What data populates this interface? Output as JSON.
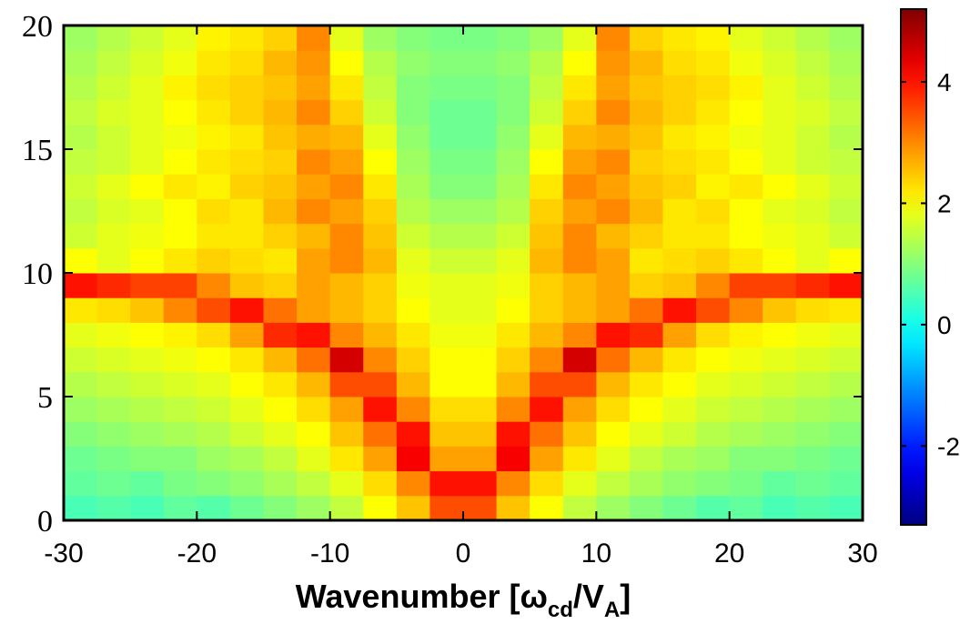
{
  "chart_data": {
    "type": "heatmap",
    "xlabel_parts": [
      "Wavenumber [ω",
      "cd",
      "/V",
      "A",
      "]"
    ],
    "x_bins": [
      -30,
      -27.5,
      -25,
      -22.5,
      -20,
      -17.5,
      -15,
      -12.5,
      -10,
      -7.5,
      -5,
      -2.5,
      0,
      2.5,
      5,
      7.5,
      10,
      12.5,
      15,
      17.5,
      20,
      22.5,
      25,
      27.5,
      30
    ],
    "y_bins": [
      0,
      1,
      2,
      3,
      4,
      5,
      6,
      7,
      8,
      9,
      10,
      11,
      12,
      13,
      14,
      15,
      16,
      17,
      18,
      19,
      20
    ],
    "z": [
      [
        0.5,
        0.6,
        0.5,
        0.7,
        0.6,
        0.8,
        1.0,
        1.2,
        1.5,
        2.0,
        2.5,
        3.5,
        3.5,
        2.5,
        2.0,
        1.5,
        1.2,
        1.0,
        0.8,
        0.6,
        0.7,
        0.5,
        0.6,
        0.5
      ],
      [
        0.7,
        0.8,
        0.7,
        0.9,
        1.0,
        1.1,
        1.3,
        1.5,
        1.8,
        2.3,
        3.0,
        4.0,
        4.0,
        3.0,
        2.3,
        1.8,
        1.5,
        1.3,
        1.1,
        1.0,
        0.9,
        0.7,
        0.8,
        0.7
      ],
      [
        0.8,
        0.9,
        1.0,
        1.0,
        1.2,
        1.3,
        1.5,
        1.8,
        2.2,
        2.8,
        4.2,
        2.8,
        2.8,
        4.2,
        2.8,
        2.2,
        1.8,
        1.5,
        1.3,
        1.2,
        1.0,
        1.0,
        0.9,
        0.8
      ],
      [
        1.0,
        1.1,
        1.2,
        1.3,
        1.4,
        1.6,
        1.8,
        2.0,
        2.5,
        3.2,
        4.0,
        2.5,
        2.5,
        4.0,
        3.2,
        2.5,
        2.0,
        1.8,
        1.6,
        1.4,
        1.3,
        1.2,
        1.1,
        1.0
      ],
      [
        1.2,
        1.3,
        1.4,
        1.5,
        1.6,
        1.8,
        2.0,
        2.3,
        2.8,
        4.0,
        3.0,
        2.3,
        2.3,
        3.0,
        4.0,
        2.8,
        2.3,
        2.0,
        1.8,
        1.6,
        1.5,
        1.4,
        1.3,
        1.2
      ],
      [
        1.4,
        1.5,
        1.6,
        1.7,
        1.8,
        2.0,
        2.2,
        2.6,
        3.5,
        3.5,
        2.6,
        2.0,
        2.0,
        2.6,
        3.5,
        3.5,
        2.6,
        2.2,
        2.0,
        1.8,
        1.7,
        1.6,
        1.5,
        1.4
      ],
      [
        1.6,
        1.7,
        1.8,
        1.9,
        2.0,
        2.2,
        2.6,
        3.2,
        4.5,
        3.0,
        2.4,
        2.0,
        2.0,
        2.4,
        3.0,
        4.5,
        3.2,
        2.6,
        2.2,
        2.0,
        1.9,
        1.8,
        1.7,
        1.6
      ],
      [
        1.8,
        1.9,
        2.0,
        2.1,
        2.3,
        2.8,
        3.8,
        4.0,
        3.0,
        2.6,
        2.2,
        1.9,
        1.9,
        2.2,
        2.6,
        3.0,
        4.0,
        3.8,
        2.8,
        2.3,
        2.1,
        2.0,
        1.9,
        1.8
      ],
      [
        2.2,
        2.3,
        2.5,
        3.0,
        3.5,
        4.0,
        3.2,
        2.8,
        2.6,
        2.4,
        2.0,
        1.8,
        1.8,
        2.0,
        2.4,
        2.6,
        2.8,
        3.2,
        4.0,
        3.5,
        3.0,
        2.5,
        2.3,
        2.2
      ],
      [
        4.0,
        3.8,
        3.6,
        3.6,
        3.0,
        2.5,
        2.4,
        2.8,
        2.6,
        2.4,
        1.9,
        1.8,
        1.8,
        1.9,
        2.4,
        2.6,
        2.8,
        2.4,
        2.5,
        3.0,
        3.6,
        3.6,
        3.8,
        4.0
      ],
      [
        2.0,
        1.8,
        2.0,
        2.2,
        2.4,
        2.3,
        2.2,
        2.8,
        3.0,
        2.6,
        1.8,
        1.6,
        1.6,
        1.8,
        2.6,
        3.0,
        2.8,
        2.2,
        2.3,
        2.4,
        2.2,
        2.0,
        1.8,
        2.0
      ],
      [
        1.6,
        1.8,
        1.9,
        2.0,
        2.2,
        2.2,
        2.4,
        2.6,
        3.0,
        2.5,
        1.6,
        1.4,
        1.4,
        1.6,
        2.5,
        3.0,
        2.6,
        2.4,
        2.2,
        2.2,
        2.0,
        1.9,
        1.8,
        1.6
      ],
      [
        1.5,
        1.7,
        1.8,
        2.0,
        2.3,
        2.2,
        2.6,
        3.0,
        2.8,
        2.4,
        1.4,
        1.2,
        1.2,
        1.4,
        2.4,
        2.8,
        3.0,
        2.6,
        2.2,
        2.3,
        2.0,
        1.8,
        1.7,
        1.5
      ],
      [
        1.6,
        1.8,
        2.0,
        2.2,
        2.1,
        2.4,
        2.5,
        2.8,
        3.0,
        2.2,
        1.3,
        1.0,
        1.0,
        1.3,
        2.2,
        3.0,
        2.8,
        2.5,
        2.4,
        2.1,
        2.2,
        2.0,
        1.8,
        1.6
      ],
      [
        1.5,
        1.6,
        1.8,
        2.0,
        2.2,
        2.3,
        2.4,
        3.0,
        2.8,
        2.0,
        1.2,
        0.9,
        0.9,
        1.2,
        2.0,
        2.8,
        3.0,
        2.4,
        2.3,
        2.2,
        2.0,
        1.8,
        1.6,
        1.5
      ],
      [
        1.4,
        1.6,
        1.8,
        1.9,
        2.1,
        2.2,
        2.5,
        2.7,
        2.6,
        1.8,
        1.1,
        0.8,
        0.8,
        1.1,
        1.8,
        2.6,
        2.7,
        2.5,
        2.2,
        2.1,
        1.9,
        1.8,
        1.6,
        1.4
      ],
      [
        1.5,
        1.7,
        1.8,
        2.0,
        2.2,
        2.4,
        2.6,
        3.0,
        2.4,
        1.6,
        1.0,
        0.8,
        0.8,
        1.0,
        1.6,
        2.4,
        3.0,
        2.6,
        2.4,
        2.2,
        2.0,
        1.8,
        1.7,
        1.5
      ],
      [
        1.4,
        1.6,
        1.8,
        2.1,
        2.3,
        2.4,
        2.5,
        2.8,
        2.2,
        1.5,
        1.0,
        0.9,
        0.9,
        1.0,
        1.5,
        2.2,
        2.8,
        2.5,
        2.4,
        2.3,
        2.1,
        1.8,
        1.6,
        1.4
      ],
      [
        1.3,
        1.5,
        1.7,
        1.9,
        2.2,
        2.3,
        2.6,
        2.9,
        2.0,
        1.4,
        1.1,
        1.0,
        1.0,
        1.1,
        1.4,
        2.0,
        2.9,
        2.6,
        2.3,
        2.2,
        1.9,
        1.7,
        1.5,
        1.3
      ],
      [
        1.2,
        1.4,
        1.6,
        1.8,
        2.1,
        2.2,
        2.4,
        3.0,
        1.8,
        1.2,
        1.0,
        0.9,
        0.9,
        1.0,
        1.2,
        1.8,
        3.0,
        2.4,
        2.2,
        2.1,
        1.8,
        1.6,
        1.4,
        1.2
      ]
    ],
    "xlim": [
      -30,
      30
    ],
    "xticks": [
      -30,
      -20,
      -10,
      0,
      10,
      20,
      30
    ],
    "ylim": [
      0,
      20
    ],
    "yticks": [
      0,
      5,
      10,
      15,
      20
    ],
    "zlim": [
      -3.3,
      5.2
    ],
    "zticks": [
      -2,
      0,
      2,
      4
    ],
    "colormap": "jet"
  }
}
